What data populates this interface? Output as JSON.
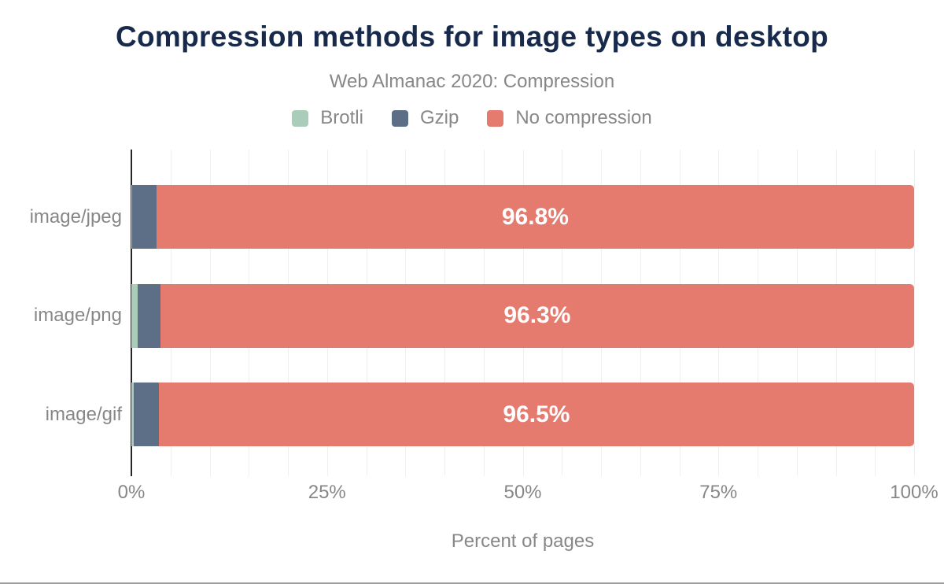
{
  "chart_data": {
    "type": "bar",
    "orientation": "horizontal",
    "stacked": true,
    "title": "Compression methods for image types on desktop",
    "subtitle": "Web Almanac 2020: Compression",
    "categories": [
      "image/jpeg",
      "image/png",
      "image/gif"
    ],
    "series": [
      {
        "name": "Brotli",
        "color": "#a9cdb9",
        "values": [
          0.1,
          0.8,
          0.3
        ]
      },
      {
        "name": "Gzip",
        "color": "#5d6f86",
        "values": [
          3.1,
          2.9,
          3.2
        ]
      },
      {
        "name": "No compression",
        "color": "#e57a6e",
        "values": [
          96.8,
          96.3,
          96.5
        ],
        "data_labels": [
          "96.8%",
          "96.3%",
          "96.5%"
        ]
      }
    ],
    "xlabel": "Percent of pages",
    "ylabel": "",
    "xlim": [
      0,
      100
    ],
    "x_ticks": [
      {
        "value": 0,
        "label": "0%"
      },
      {
        "value": 25,
        "label": "25%"
      },
      {
        "value": 50,
        "label": "50%"
      },
      {
        "value": 75,
        "label": "75%"
      },
      {
        "value": 100,
        "label": "100%"
      }
    ],
    "grid": {
      "vertical": true,
      "step": 5
    },
    "legend_position": "top",
    "colors": {
      "title": "#182a4c",
      "muted_text": "#878787",
      "bar_label": "#ffffff",
      "axis_line": "#262626",
      "gridline": "#efefef"
    }
  }
}
